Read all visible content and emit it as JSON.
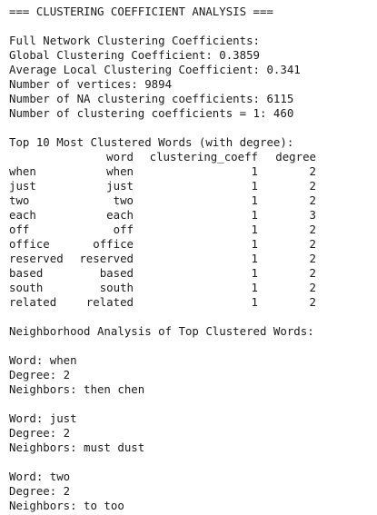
{
  "console": {
    "header": "=== CLUSTERING COEFFICIENT ANALYSIS ===",
    "full_network_title": "Full Network Clustering Coefficients:",
    "global_line": "Global Clustering Coefficient: 0.3859",
    "average_line": "Average Local Clustering Coefficient: 0.341",
    "vertices_line": "Number of vertices: 9894",
    "na_line": "Number of NA clustering coefficients: 6115",
    "ones_line": "Number of clustering coefficients = 1: 460",
    "top10_title": "Top 10 Most Clustered Words (with degree):",
    "table": {
      "headers": {
        "word": "word",
        "coeff": "clustering_coeff",
        "degree": "degree"
      },
      "rows": [
        {
          "name": "when",
          "word": "when",
          "coeff": "1",
          "degree": "2"
        },
        {
          "name": "just",
          "word": "just",
          "coeff": "1",
          "degree": "2"
        },
        {
          "name": "two",
          "word": "two",
          "coeff": "1",
          "degree": "2"
        },
        {
          "name": "each",
          "word": "each",
          "coeff": "1",
          "degree": "3"
        },
        {
          "name": "off",
          "word": "off",
          "coeff": "1",
          "degree": "2"
        },
        {
          "name": "office",
          "word": "office",
          "coeff": "1",
          "degree": "2"
        },
        {
          "name": "reserved",
          "word": "reserved",
          "coeff": "1",
          "degree": "2"
        },
        {
          "name": "based",
          "word": "based",
          "coeff": "1",
          "degree": "2"
        },
        {
          "name": "south",
          "word": "south",
          "coeff": "1",
          "degree": "2"
        },
        {
          "name": "related",
          "word": "related",
          "coeff": "1",
          "degree": "2"
        }
      ]
    },
    "neighborhood_title": "Neighborhood Analysis of Top Clustered Words:",
    "neighborhoods": [
      {
        "word": "Word: when",
        "degree": "Degree: 2",
        "neighbors": "Neighbors: then chen"
      },
      {
        "word": "Word: just",
        "degree": "Degree: 2",
        "neighbors": "Neighbors: must dust"
      },
      {
        "word": "Word: two",
        "degree": "Degree: 2",
        "neighbors": "Neighbors: to too"
      }
    ]
  }
}
